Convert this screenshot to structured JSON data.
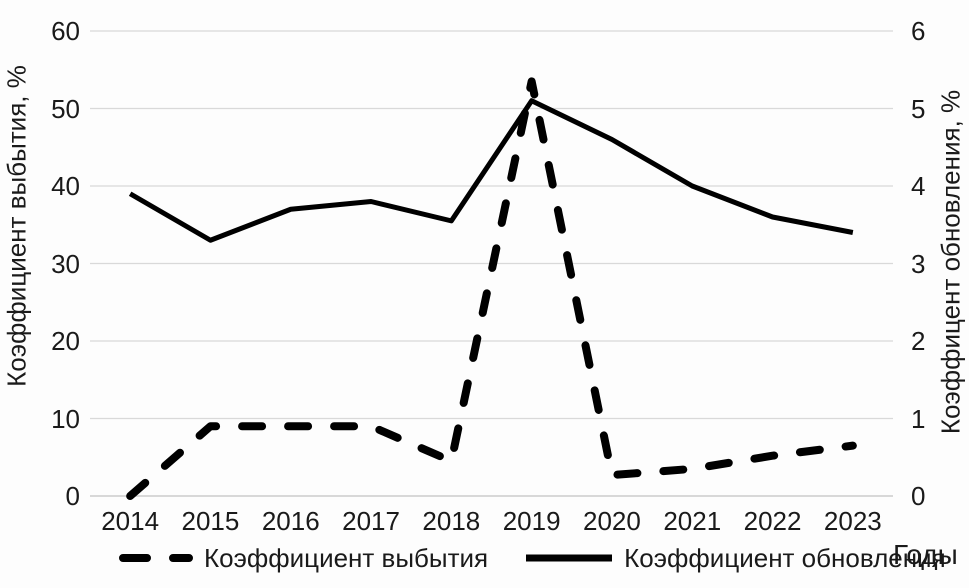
{
  "colors": {
    "series": "#000000",
    "gridline": "#d9d9d9",
    "baseline": "#c2c2c2",
    "text": "#1a1a1a",
    "background": "#fdfdfd"
  },
  "chart_data": {
    "type": "line",
    "title": "",
    "categories": [
      "2014",
      "2015",
      "2016",
      "2017",
      "2018",
      "2019",
      "2020",
      "2021",
      "2022",
      "2023"
    ],
    "xlabel": "Годы",
    "grid": true,
    "legend_position": "bottom",
    "left_axis": {
      "label": "Коэффициент выбытия, %",
      "min": 0,
      "max": 60,
      "ticks": [
        0,
        10,
        20,
        30,
        40,
        50,
        60
      ]
    },
    "right_axis": {
      "label": "Коэффицент обновления, %",
      "min": 0,
      "max": 6,
      "ticks": [
        0,
        1,
        2,
        3,
        4,
        5,
        6
      ]
    },
    "series": [
      {
        "name": "Коэффициент выбытия",
        "axis": "left",
        "style": "dashed",
        "color": "#000000",
        "values": [
          0,
          9,
          9,
          9,
          4.5,
          53.5,
          2.7,
          3.5,
          5.2,
          6.5
        ]
      },
      {
        "name": "Коэффициент обновления",
        "axis": "right",
        "style": "solid",
        "color": "#000000",
        "values": [
          3.9,
          3.3,
          3.7,
          3.8,
          3.55,
          5.1,
          4.6,
          4.0,
          3.6,
          3.4
        ]
      }
    ]
  }
}
